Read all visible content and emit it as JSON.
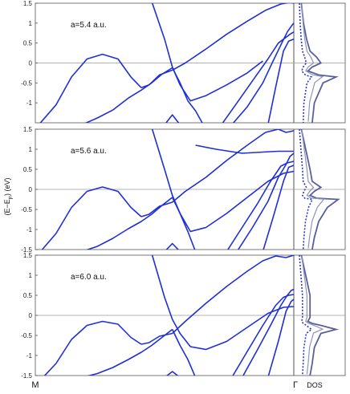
{
  "colors": {
    "band": "#1f2fd6",
    "dos_total": "#5a5f9a",
    "dos_partial": "#8f93b8",
    "dos_dotted": "#2a36c9",
    "zero_line": "#9a9a9a",
    "frame": "#555555"
  },
  "chart_data": [
    {
      "type": "line",
      "label": "a=5.4 a.u.",
      "ylim": [
        -1.5,
        1.5
      ],
      "yticks": [
        "-1",
        "-0.5",
        "0",
        "0.5",
        "1",
        "1.5"
      ],
      "ytick_values": [
        -1,
        -0.5,
        0,
        0.5,
        1,
        1.5
      ],
      "xlim": [
        0,
        1
      ],
      "series": [
        {
          "x": [
            0.0,
            0.08,
            0.14,
            0.2,
            0.26,
            0.32,
            0.37,
            0.41
          ],
          "y": [
            -1.65,
            -1.05,
            -0.35,
            0.1,
            0.22,
            0.1,
            -0.35,
            -0.62
          ]
        },
        {
          "x": [
            0.41,
            0.44,
            0.48,
            0.53
          ],
          "y": [
            -0.62,
            -0.55,
            -0.3,
            -0.18
          ]
        },
        {
          "x": [
            0.53,
            0.58,
            0.66,
            0.74,
            0.82,
            0.89,
            0.95,
            0.985,
            1.0
          ],
          "y": [
            -0.18,
            0.0,
            0.35,
            0.72,
            1.05,
            1.32,
            1.48,
            1.52,
            1.5
          ]
        },
        {
          "x": [
            0.18,
            0.24,
            0.3,
            0.36,
            0.41,
            0.45,
            0.49,
            0.53
          ],
          "y": [
            -1.55,
            -1.38,
            -1.18,
            -0.88,
            -0.68,
            -0.5,
            -0.28,
            -0.12
          ]
        },
        {
          "x": [
            0.45,
            0.5,
            0.53,
            0.56,
            0.6,
            0.66,
            0.74,
            0.82,
            0.88
          ],
          "y": [
            1.55,
            0.6,
            -0.1,
            -0.55,
            -0.95,
            -0.82,
            -0.55,
            -0.25,
            0.05
          ]
        },
        {
          "x": [
            0.53,
            0.56,
            0.59
          ],
          "y": [
            -0.12,
            -0.5,
            -0.95
          ]
        },
        {
          "x": [
            0.59,
            0.62,
            0.65
          ],
          "y": [
            -0.95,
            -1.2,
            -1.55
          ]
        },
        {
          "x": [
            0.5,
            0.53,
            0.56
          ],
          "y": [
            -1.55,
            -1.3,
            -1.55
          ]
        },
        {
          "x": [
            0.72,
            0.78,
            0.84,
            0.9,
            0.94,
            0.965,
            0.985,
            1.0
          ],
          "y": [
            -1.55,
            -1.0,
            -0.45,
            0.1,
            0.5,
            0.62,
            0.72,
            0.78
          ]
        },
        {
          "x": [
            0.76,
            0.82,
            0.88,
            0.92,
            0.955,
            0.975,
            0.99,
            1.0
          ],
          "y": [
            -1.55,
            -1.1,
            -0.5,
            0.05,
            0.52,
            0.78,
            0.92,
            1.0
          ]
        },
        {
          "x": [
            0.9,
            0.93,
            0.96,
            0.98,
            1.0
          ],
          "y": [
            -1.55,
            -0.6,
            0.3,
            0.55,
            0.6
          ]
        }
      ],
      "dos": {
        "x": [
          0.1,
          0.15,
          0.22,
          0.3,
          0.45,
          0.55,
          0.35,
          0.25,
          0.5,
          0.9,
          0.6,
          0.4,
          0.35
        ],
        "y": [
          1.5,
          1.0,
          0.6,
          0.3,
          0.15,
          0.0,
          -0.1,
          -0.2,
          -0.3,
          -0.35,
          -0.5,
          -1.0,
          -1.5
        ]
      }
    },
    {
      "type": "line",
      "label": "a=5.6 a.u.",
      "ylabel": "(E−E",
      "ylabel_sub": "F",
      "ylabel_unit": ") (eV)",
      "ylim": [
        -1.5,
        1.5
      ],
      "yticks": [
        "-1.5",
        "-1",
        "-0.5",
        "0",
        "0.5",
        "1",
        "1.5"
      ],
      "ytick_values": [
        -1.5,
        -1,
        -0.5,
        0,
        0.5,
        1,
        1.5
      ],
      "xlim": [
        0,
        1
      ],
      "series": [
        {
          "x": [
            0.0,
            0.08,
            0.14,
            0.2,
            0.26,
            0.32,
            0.37,
            0.41
          ],
          "y": [
            -1.7,
            -1.1,
            -0.45,
            -0.05,
            0.06,
            -0.05,
            -0.45,
            -0.68
          ]
        },
        {
          "x": [
            0.41,
            0.44,
            0.48,
            0.53
          ],
          "y": [
            -0.68,
            -0.62,
            -0.42,
            -0.32
          ]
        },
        {
          "x": [
            0.53,
            0.58,
            0.66,
            0.74,
            0.82,
            0.89,
            0.94,
            0.97,
            1.0
          ],
          "y": [
            -0.32,
            -0.05,
            0.3,
            0.72,
            1.1,
            1.42,
            1.5,
            1.42,
            1.46
          ]
        },
        {
          "x": [
            0.18,
            0.24,
            0.3,
            0.36,
            0.41,
            0.45,
            0.49,
            0.53
          ],
          "y": [
            -1.55,
            -1.42,
            -1.22,
            -0.98,
            -0.8,
            -0.62,
            -0.4,
            -0.2
          ]
        },
        {
          "x": [
            0.45,
            0.5,
            0.53,
            0.56,
            0.6,
            0.66,
            0.74,
            0.82,
            0.9,
            0.96,
            1.0
          ],
          "y": [
            1.55,
            0.5,
            -0.15,
            -0.6,
            -1.05,
            -0.95,
            -0.6,
            -0.2,
            0.2,
            0.4,
            0.45
          ]
        },
        {
          "x": [
            0.53,
            0.56,
            0.59,
            0.62
          ],
          "y": [
            -0.2,
            -0.6,
            -1.05,
            -1.55
          ]
        },
        {
          "x": [
            0.5,
            0.53,
            0.56
          ],
          "y": [
            -1.55,
            -1.35,
            -1.55
          ]
        },
        {
          "x": [
            0.74,
            0.8,
            0.86,
            0.91,
            0.95,
            0.975,
            1.0
          ],
          "y": [
            -1.55,
            -0.95,
            -0.35,
            0.2,
            0.58,
            0.66,
            0.7
          ]
        },
        {
          "x": [
            0.78,
            0.84,
            0.9,
            0.94,
            0.97,
            0.985,
            1.0
          ],
          "y": [
            -1.55,
            -0.95,
            -0.3,
            0.3,
            0.62,
            0.82,
            0.9
          ]
        },
        {
          "x": [
            0.62,
            0.7,
            0.8,
            0.88,
            0.94,
            1.0
          ],
          "y": [
            1.1,
            1.0,
            0.9,
            0.93,
            0.95,
            0.95
          ]
        },
        {
          "x": [
            0.88,
            0.92,
            0.96,
            0.98,
            1.0
          ],
          "y": [
            -1.55,
            -0.7,
            0.2,
            0.55,
            0.6
          ]
        }
      ],
      "dos": {
        "x": [
          0.1,
          0.2,
          0.3,
          0.35,
          0.55,
          0.4,
          0.3,
          0.45,
          0.95,
          0.7,
          0.5,
          0.4,
          0.35
        ],
        "y": [
          1.5,
          1.0,
          0.5,
          0.2,
          0.05,
          -0.05,
          -0.15,
          -0.22,
          -0.25,
          -0.45,
          -0.8,
          -1.2,
          -1.5
        ]
      }
    },
    {
      "type": "line",
      "label": "a=6.0 a.u.",
      "ylim": [
        -1.5,
        1.5
      ],
      "yticks": [
        "-1.5",
        "-1",
        "-0.5",
        "0",
        "0.5",
        "1",
        "1.5"
      ],
      "ytick_values": [
        -1.5,
        -1,
        -0.5,
        0,
        0.5,
        1,
        1.5
      ],
      "xlim": [
        0,
        1
      ],
      "xtick_labels": [
        "M",
        "Γ"
      ],
      "dos_label": "DOS",
      "series": [
        {
          "x": [
            0.0,
            0.08,
            0.14,
            0.2,
            0.26,
            0.32,
            0.37,
            0.41
          ],
          "y": [
            -1.75,
            -1.2,
            -0.6,
            -0.25,
            -0.15,
            -0.22,
            -0.55,
            -0.72
          ]
        },
        {
          "x": [
            0.41,
            0.44,
            0.48,
            0.53
          ],
          "y": [
            -0.72,
            -0.68,
            -0.52,
            -0.45
          ]
        },
        {
          "x": [
            0.53,
            0.58,
            0.66,
            0.74,
            0.82,
            0.88,
            0.93,
            0.97,
            1.0
          ],
          "y": [
            -0.45,
            -0.15,
            0.3,
            0.72,
            1.1,
            1.36,
            1.48,
            1.44,
            1.5
          ]
        },
        {
          "x": [
            0.18,
            0.24,
            0.3,
            0.36,
            0.41,
            0.45,
            0.49,
            0.53
          ],
          "y": [
            -1.55,
            -1.45,
            -1.3,
            -1.1,
            -0.92,
            -0.75,
            -0.55,
            -0.35
          ]
        },
        {
          "x": [
            0.45,
            0.5,
            0.53,
            0.56,
            0.6,
            0.66,
            0.74,
            0.82,
            0.9,
            0.96,
            1.0
          ],
          "y": [
            1.55,
            0.45,
            -0.1,
            -0.45,
            -0.78,
            -0.85,
            -0.65,
            -0.3,
            0.05,
            0.2,
            0.22
          ]
        },
        {
          "x": [
            0.53,
            0.56,
            0.59,
            0.62
          ],
          "y": [
            -0.35,
            -0.75,
            -1.1,
            -1.55
          ]
        },
        {
          "x": [
            0.5,
            0.53,
            0.56
          ],
          "y": [
            -1.55,
            -1.4,
            -1.55
          ]
        },
        {
          "x": [
            0.76,
            0.82,
            0.88,
            0.93,
            0.96,
            0.98,
            1.0
          ],
          "y": [
            -1.55,
            -0.9,
            -0.25,
            0.25,
            0.45,
            0.5,
            0.52
          ]
        },
        {
          "x": [
            0.8,
            0.86,
            0.91,
            0.95,
            0.975,
            0.99,
            1.0
          ],
          "y": [
            -1.55,
            -0.85,
            -0.25,
            0.25,
            0.5,
            0.62,
            0.65
          ]
        },
        {
          "x": [
            0.9,
            0.94,
            0.97,
            0.99,
            1.0
          ],
          "y": [
            -1.55,
            -0.65,
            0.1,
            0.35,
            0.4
          ]
        }
      ],
      "dos": {
        "x": [
          0.1,
          0.2,
          0.3,
          0.3,
          0.3,
          0.25,
          0.35,
          0.55,
          0.9,
          0.55,
          0.4,
          0.35,
          0.3
        ],
        "y": [
          1.5,
          1.0,
          0.5,
          0.1,
          -0.05,
          -0.15,
          -0.2,
          -0.25,
          -0.35,
          -0.45,
          -0.8,
          -1.2,
          -1.5
        ]
      }
    }
  ]
}
